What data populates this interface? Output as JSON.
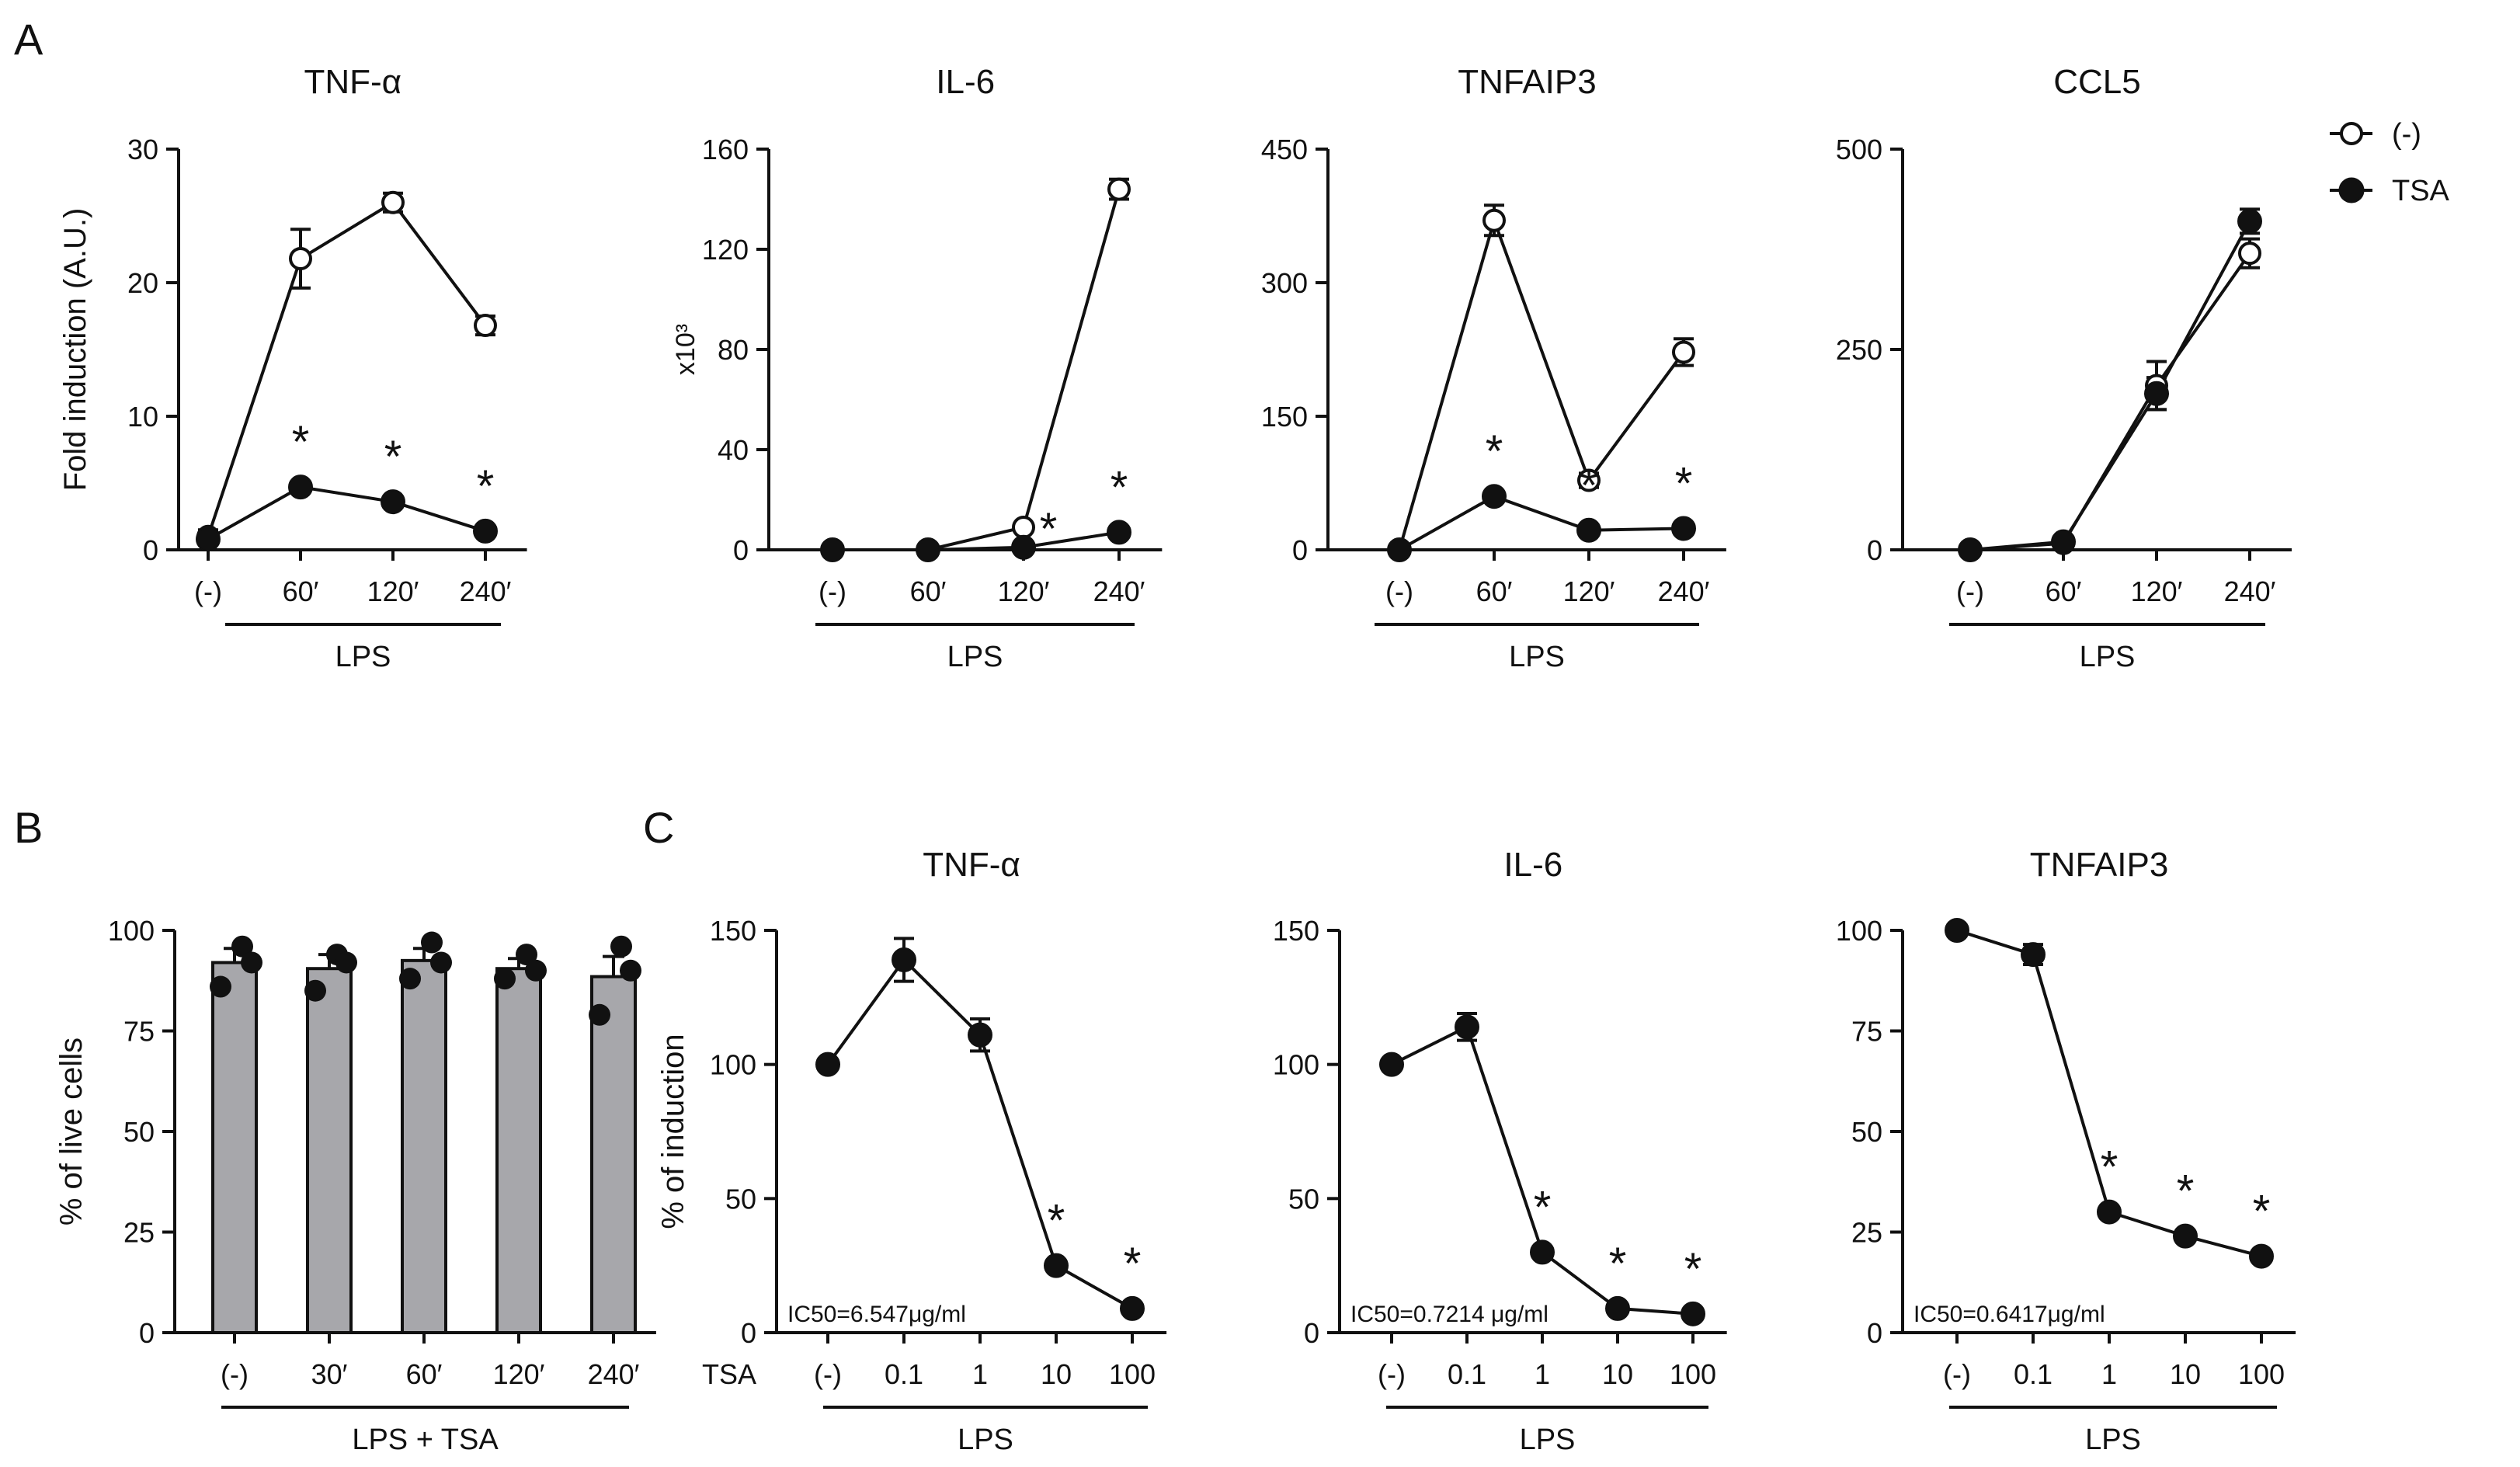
{
  "figure": {
    "panel_labels": [
      "A",
      "B",
      "C"
    ],
    "legend": [
      {
        "label": "(-)",
        "marker": "open-circle"
      },
      {
        "label": "TSA",
        "marker": "filled-circle"
      }
    ]
  },
  "colors": {
    "ink": "#111111",
    "bar_fill": "#a7a7ab",
    "background": "#ffffff"
  },
  "chart_data": [
    {
      "id": "A-TNFa",
      "panel": "A",
      "type": "line",
      "title": "TNF-α",
      "ylabel": "Fold induction (A.U.)",
      "scale_label": "",
      "categories": [
        "(-)",
        "60′",
        "120′",
        "240′"
      ],
      "xaxis_prefix": "",
      "group_label": "LPS",
      "ylim": [
        0,
        30
      ],
      "yticks": [
        0,
        10,
        20,
        30
      ],
      "series": [
        {
          "name": "(-)",
          "marker": "open",
          "values": [
            1,
            21.8,
            26,
            16.8
          ],
          "errors": [
            0.5,
            2.2,
            0.7,
            0.7
          ]
        },
        {
          "name": "TSA",
          "marker": "filled",
          "values": [
            0.8,
            4.7,
            3.6,
            1.4
          ],
          "errors": [
            0.3,
            0.4,
            0.4,
            0.3
          ],
          "significant": [
            false,
            true,
            true,
            true
          ]
        }
      ],
      "annotations": []
    },
    {
      "id": "A-IL6",
      "panel": "A",
      "type": "line",
      "title": "IL-6",
      "ylabel": "",
      "scale_label": "x10³",
      "categories": [
        "(-)",
        "60′",
        "120′",
        "240′"
      ],
      "xaxis_prefix": "",
      "group_label": "LPS",
      "ylim": [
        0,
        160
      ],
      "yticks": [
        0,
        40,
        80,
        120,
        160
      ],
      "series": [
        {
          "name": "(-)",
          "marker": "open",
          "values": [
            0,
            0,
            9,
            144
          ],
          "errors": [
            0,
            0,
            1.5,
            4
          ]
        },
        {
          "name": "TSA",
          "marker": "filled",
          "values": [
            0,
            0,
            1,
            7
          ],
          "errors": [
            0,
            0,
            0.5,
            1
          ],
          "significant": [
            false,
            false,
            true,
            true
          ]
        }
      ],
      "annotations": []
    },
    {
      "id": "A-TNFAIP3",
      "panel": "A",
      "type": "line",
      "title": "TNFAIP3",
      "ylabel": "",
      "scale_label": "",
      "categories": [
        "(-)",
        "60′",
        "120′",
        "240′"
      ],
      "xaxis_prefix": "",
      "group_label": "LPS",
      "ylim": [
        0,
        450
      ],
      "yticks": [
        0,
        150,
        300,
        450
      ],
      "series": [
        {
          "name": "(-)",
          "marker": "open",
          "values": [
            0,
            370,
            78,
            222
          ],
          "errors": [
            0,
            17,
            8,
            15
          ]
        },
        {
          "name": "TSA",
          "marker": "filled",
          "values": [
            0,
            60,
            22,
            24
          ],
          "errors": [
            0,
            6,
            4,
            4
          ],
          "significant": [
            false,
            true,
            true,
            true
          ]
        }
      ],
      "annotations": []
    },
    {
      "id": "A-CCL5",
      "panel": "A",
      "type": "line",
      "title": "CCL5",
      "ylabel": "",
      "scale_label": "",
      "categories": [
        "(-)",
        "60′",
        "120′",
        "240′"
      ],
      "xaxis_prefix": "",
      "group_label": "LPS",
      "ylim": [
        0,
        500
      ],
      "yticks": [
        0,
        250,
        500
      ],
      "series": [
        {
          "name": "(-)",
          "marker": "open",
          "values": [
            0,
            8,
            205,
            370
          ],
          "errors": [
            0,
            3,
            30,
            18
          ]
        },
        {
          "name": "TSA",
          "marker": "filled",
          "values": [
            0,
            10,
            195,
            410
          ],
          "errors": [
            0,
            3,
            20,
            15
          ],
          "significant": [
            false,
            false,
            false,
            false
          ]
        }
      ],
      "annotations": []
    },
    {
      "id": "B-viability",
      "panel": "B",
      "type": "bar",
      "title": "",
      "ylabel": "% of live cells",
      "scale_label": "",
      "categories": [
        "(-)",
        "30′",
        "60′",
        "120′",
        "240′"
      ],
      "xaxis_prefix": "",
      "group_label": "LPS + TSA",
      "ylim": [
        0,
        100
      ],
      "yticks": [
        0,
        25,
        50,
        75,
        100
      ],
      "values": [
        92,
        90.5,
        92.5,
        90.5,
        88.5
      ],
      "errors": [
        3.5,
        3.5,
        3,
        2.5,
        5
      ],
      "points": [
        [
          96,
          86,
          92
        ],
        [
          94,
          85,
          92
        ],
        [
          97,
          88,
          92
        ],
        [
          94,
          88,
          90
        ],
        [
          96,
          79,
          90
        ]
      ]
    },
    {
      "id": "C-TNFa",
      "panel": "C",
      "type": "line",
      "title": "TNF-α",
      "ylabel": "% of induction",
      "scale_label": "",
      "categories": [
        "(-)",
        "0.1",
        "1",
        "10",
        "100"
      ],
      "xaxis_prefix": "TSA",
      "group_label": "LPS",
      "ylim": [
        0,
        150
      ],
      "yticks": [
        0,
        50,
        100,
        150
      ],
      "series": [
        {
          "name": "TSA",
          "marker": "filled",
          "values": [
            100,
            139,
            111,
            25,
            9
          ],
          "errors": [
            0,
            8,
            6,
            2,
            1
          ],
          "significant": [
            false,
            false,
            false,
            true,
            true
          ]
        }
      ],
      "annotations": [
        "IC50=6.547μg/ml"
      ]
    },
    {
      "id": "C-IL6",
      "panel": "C",
      "type": "line",
      "title": "IL-6",
      "ylabel": "",
      "scale_label": "",
      "categories": [
        "(-)",
        "0.1",
        "1",
        "10",
        "100"
      ],
      "xaxis_prefix": "",
      "group_label": "LPS",
      "ylim": [
        0,
        150
      ],
      "yticks": [
        0,
        50,
        100,
        150
      ],
      "series": [
        {
          "name": "TSA",
          "marker": "filled",
          "values": [
            100,
            114,
            30,
            9,
            7
          ],
          "errors": [
            0,
            5,
            2,
            1,
            1
          ],
          "significant": [
            false,
            false,
            true,
            true,
            true
          ]
        }
      ],
      "annotations": [
        "IC50=0.7214 μg/ml"
      ]
    },
    {
      "id": "C-TNFAIP3",
      "panel": "C",
      "type": "line",
      "title": "TNFAIP3",
      "ylabel": "",
      "scale_label": "",
      "categories": [
        "(-)",
        "0.1",
        "1",
        "10",
        "100"
      ],
      "xaxis_prefix": "",
      "group_label": "LPS",
      "ylim": [
        0,
        100
      ],
      "yticks": [
        0,
        25,
        50,
        75,
        100
      ],
      "series": [
        {
          "name": "TSA",
          "marker": "filled",
          "values": [
            100,
            94,
            30,
            24,
            19
          ],
          "errors": [
            0,
            2.5,
            1.5,
            1.5,
            1
          ],
          "significant": [
            false,
            false,
            true,
            true,
            true
          ]
        }
      ],
      "annotations": [
        "IC50=0.6417μg/ml"
      ]
    }
  ]
}
